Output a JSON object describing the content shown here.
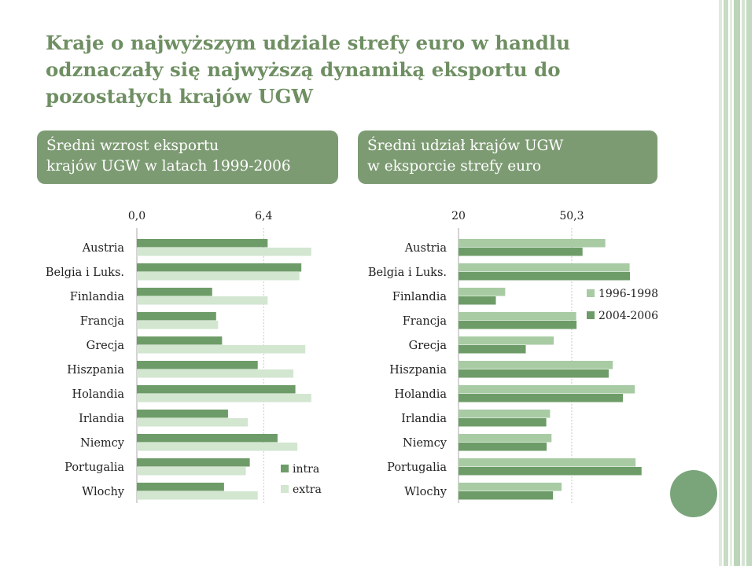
{
  "title": "Kraje o najwyższym udziale strefy euro w handlu odznaczały się najwyższą dynamiką eksportu do pozostałych krajów UGW",
  "box1": {
    "line1": "Średni wzrost eksportu",
    "line2": "krajów UGW w latach 1999-2006"
  },
  "box2": {
    "line1": "Średni udział krajów UGW",
    "line2": "w eksporcie strefy euro"
  },
  "colors": {
    "dark_green": "#6e9c68",
    "light_green": "#d2e6d0",
    "mid_green": "#a8cba4",
    "title": "#6f8f63",
    "box": "#7d9b73"
  },
  "chart_data": [
    {
      "type": "bar",
      "orientation": "horizontal",
      "categories": [
        "Austria",
        "Belgia i Luks.",
        "Finlandia",
        "Francja",
        "Grecja",
        "Hiszpania",
        "Holandia",
        "Irlandia",
        "Niemcy",
        "Portugalia",
        "Wlochy"
      ],
      "series": [
        {
          "name": "intra",
          "values": [
            6.6,
            8.3,
            3.8,
            4.0,
            4.3,
            6.1,
            8.0,
            4.6,
            7.1,
            5.7,
            4.4
          ]
        },
        {
          "name": "extra",
          "values": [
            8.8,
            8.2,
            6.6,
            4.1,
            8.5,
            7.9,
            8.8,
            5.6,
            8.1,
            5.5,
            6.1
          ]
        }
      ],
      "tick_labels": [
        "0,0",
        "6,4"
      ],
      "tick_values": [
        0.0,
        6.4
      ],
      "xlim": [
        0,
        9.5
      ],
      "legend": "bottom-right"
    },
    {
      "type": "bar",
      "orientation": "horizontal",
      "categories": [
        "Austria",
        "Belgia i Luks.",
        "Finlandia",
        "Francja",
        "Grecja",
        "Hiszpania",
        "Holandia",
        "Irlandia",
        "Niemcy",
        "Portugalia",
        "Wlochy"
      ],
      "series": [
        {
          "name": "1996-1998",
          "values": [
            59.3,
            65.8,
            32.5,
            51.5,
            45.5,
            61.3,
            67.2,
            44.5,
            44.9,
            67.4,
            47.6
          ]
        },
        {
          "name": "2004-2006",
          "values": [
            53.2,
            65.9,
            30.0,
            51.6,
            38.0,
            60.2,
            64.0,
            43.5,
            43.6,
            69.0,
            45.3
          ]
        }
      ],
      "tick_labels": [
        "20",
        "50,3"
      ],
      "tick_values": [
        20,
        50.3
      ],
      "xlim": [
        20,
        75
      ],
      "legend": "right"
    }
  ]
}
